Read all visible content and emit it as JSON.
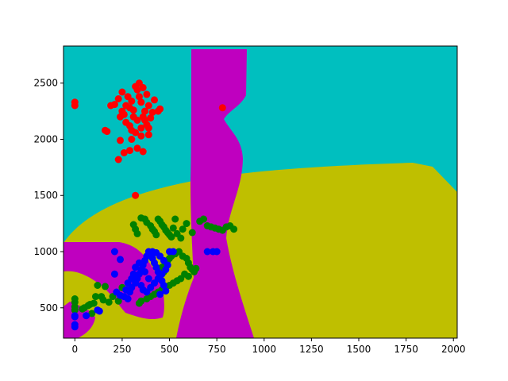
{
  "chart_data": {
    "type": "scatter",
    "title": "",
    "xlabel": "",
    "ylabel": "",
    "xlim": [
      -60,
      2020
    ],
    "ylim": [
      230,
      2830
    ],
    "xticks": [
      0,
      250,
      500,
      750,
      1000,
      1250,
      1500,
      1750,
      2000
    ],
    "yticks": [
      500,
      1000,
      1500,
      2000,
      2500
    ],
    "xtick_labels": [
      "0",
      "250",
      "500",
      "750",
      "1000",
      "1250",
      "1500",
      "1750",
      "2000"
    ],
    "ytick_labels": [
      "500",
      "1000",
      "1500",
      "2000",
      "2500"
    ],
    "grid": false,
    "legend": "none",
    "region_colors": {
      "cyan_region": "#00bfbf",
      "yellow_region": "#bfbf00",
      "magenta_region": "#bf00bf"
    },
    "series": [
      {
        "color": "#ff0000",
        "points": [
          [
            0,
            2330
          ],
          [
            0,
            2300
          ],
          [
            160,
            2080
          ],
          [
            170,
            2070
          ],
          [
            230,
            1820
          ],
          [
            240,
            1990
          ],
          [
            260,
            1880
          ],
          [
            290,
            1900
          ],
          [
            330,
            1920
          ],
          [
            360,
            1890
          ],
          [
            390,
            2040
          ],
          [
            320,
            1500
          ],
          [
            780,
            2280
          ],
          [
            420,
            2350
          ],
          [
            450,
            2270
          ],
          [
            440,
            2250
          ],
          [
            190,
            2300
          ],
          [
            210,
            2310
          ],
          [
            230,
            2360
          ],
          [
            250,
            2420
          ],
          [
            270,
            2150
          ],
          [
            290,
            2120
          ],
          [
            300,
            2080
          ],
          [
            310,
            2260
          ],
          [
            320,
            2470
          ],
          [
            330,
            2440
          ],
          [
            340,
            2380
          ],
          [
            350,
            2330
          ],
          [
            360,
            2200
          ],
          [
            370,
            2170
          ],
          [
            380,
            2130
          ],
          [
            390,
            2100
          ],
          [
            400,
            2190
          ],
          [
            410,
            2240
          ],
          [
            260,
            2220
          ],
          [
            280,
            2380
          ],
          [
            300,
            2340
          ],
          [
            340,
            2500
          ],
          [
            360,
            2460
          ],
          [
            380,
            2400
          ],
          [
            330,
            2170
          ],
          [
            350,
            2100
          ],
          [
            370,
            2250
          ],
          [
            390,
            2300
          ],
          [
            310,
            2200
          ],
          [
            290,
            2280
          ],
          [
            270,
            2300
          ],
          [
            250,
            2250
          ],
          [
            240,
            2200
          ],
          [
            350,
            2030
          ],
          [
            320,
            2060
          ],
          [
            300,
            2000
          ]
        ]
      },
      {
        "color": "#008000",
        "points": [
          [
            0,
            580
          ],
          [
            0,
            550
          ],
          [
            0,
            510
          ],
          [
            0,
            480
          ],
          [
            40,
            490
          ],
          [
            50,
            500
          ],
          [
            70,
            520
          ],
          [
            80,
            530
          ],
          [
            90,
            450
          ],
          [
            100,
            540
          ],
          [
            110,
            600
          ],
          [
            120,
            700
          ],
          [
            140,
            600
          ],
          [
            150,
            570
          ],
          [
            160,
            690
          ],
          [
            180,
            550
          ],
          [
            200,
            600
          ],
          [
            230,
            560
          ],
          [
            250,
            680
          ],
          [
            310,
            1240
          ],
          [
            320,
            1200
          ],
          [
            330,
            1160
          ],
          [
            350,
            1300
          ],
          [
            370,
            1290
          ],
          [
            380,
            1260
          ],
          [
            400,
            1230
          ],
          [
            410,
            1200
          ],
          [
            420,
            1180
          ],
          [
            430,
            1150
          ],
          [
            440,
            1290
          ],
          [
            450,
            1270
          ],
          [
            460,
            1240
          ],
          [
            470,
            1220
          ],
          [
            480,
            1190
          ],
          [
            490,
            1170
          ],
          [
            500,
            1150
          ],
          [
            510,
            1130
          ],
          [
            520,
            1210
          ],
          [
            530,
            1290
          ],
          [
            540,
            1160
          ],
          [
            560,
            1120
          ],
          [
            570,
            1200
          ],
          [
            590,
            1250
          ],
          [
            620,
            1170
          ],
          [
            660,
            1270
          ],
          [
            680,
            1290
          ],
          [
            700,
            1230
          ],
          [
            720,
            1220
          ],
          [
            740,
            1210
          ],
          [
            760,
            1200
          ],
          [
            780,
            1190
          ],
          [
            800,
            1220
          ],
          [
            820,
            1230
          ],
          [
            840,
            1200
          ],
          [
            570,
            960
          ],
          [
            590,
            940
          ],
          [
            600,
            900
          ],
          [
            610,
            860
          ],
          [
            620,
            840
          ],
          [
            630,
            820
          ],
          [
            640,
            850
          ],
          [
            550,
            1000
          ],
          [
            530,
            980
          ],
          [
            510,
            960
          ],
          [
            500,
            940
          ],
          [
            490,
            920
          ],
          [
            480,
            880
          ],
          [
            460,
            860
          ],
          [
            470,
            820
          ],
          [
            450,
            800
          ],
          [
            580,
            800
          ],
          [
            600,
            780
          ],
          [
            560,
            760
          ],
          [
            540,
            740
          ],
          [
            520,
            720
          ],
          [
            500,
            700
          ],
          [
            480,
            680
          ],
          [
            460,
            660
          ],
          [
            440,
            640
          ],
          [
            420,
            620
          ],
          [
            400,
            600
          ],
          [
            380,
            580
          ],
          [
            350,
            560
          ],
          [
            340,
            540
          ]
        ]
      },
      {
        "color": "#0000ff",
        "points": [
          [
            0,
            430
          ],
          [
            0,
            420
          ],
          [
            0,
            350
          ],
          [
            0,
            330
          ],
          [
            60,
            430
          ],
          [
            120,
            480
          ],
          [
            130,
            470
          ],
          [
            210,
            1000
          ],
          [
            240,
            930
          ],
          [
            210,
            800
          ],
          [
            220,
            640
          ],
          [
            240,
            610
          ],
          [
            260,
            600
          ],
          [
            280,
            580
          ],
          [
            450,
            620
          ],
          [
            480,
            650
          ],
          [
            500,
            1000
          ],
          [
            520,
            1000
          ],
          [
            700,
            1000
          ],
          [
            730,
            1000
          ],
          [
            750,
            1000
          ],
          [
            300,
            680
          ],
          [
            320,
            720
          ],
          [
            330,
            760
          ],
          [
            340,
            800
          ],
          [
            350,
            840
          ],
          [
            360,
            880
          ],
          [
            370,
            920
          ],
          [
            380,
            960
          ],
          [
            390,
            1000
          ],
          [
            400,
            980
          ],
          [
            410,
            940
          ],
          [
            420,
            900
          ],
          [
            430,
            860
          ],
          [
            440,
            820
          ],
          [
            450,
            780
          ],
          [
            460,
            740
          ],
          [
            470,
            700
          ],
          [
            350,
            700
          ],
          [
            360,
            660
          ],
          [
            380,
            640
          ],
          [
            400,
            680
          ],
          [
            420,
            720
          ],
          [
            440,
            760
          ],
          [
            460,
            800
          ],
          [
            480,
            840
          ],
          [
            490,
            880
          ],
          [
            470,
            920
          ],
          [
            450,
            960
          ],
          [
            430,
            990
          ],
          [
            410,
            1000
          ],
          [
            390,
            760
          ],
          [
            370,
            820
          ],
          [
            340,
            900
          ],
          [
            320,
            860
          ],
          [
            310,
            800
          ],
          [
            300,
            760
          ],
          [
            280,
            720
          ],
          [
            290,
            640
          ],
          [
            270,
            660
          ]
        ]
      }
    ]
  }
}
